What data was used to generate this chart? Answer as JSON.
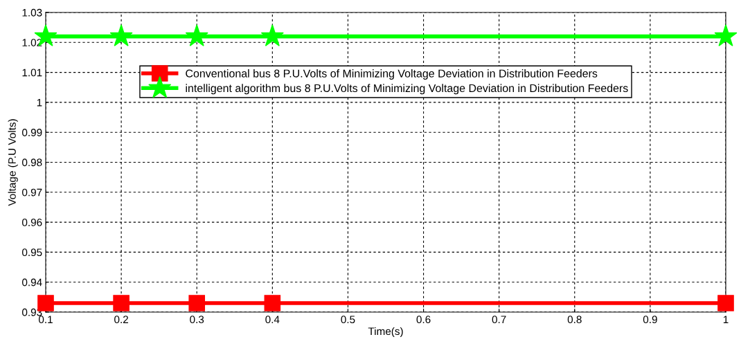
{
  "chart_data": {
    "type": "line",
    "xlabel": "Time(s)",
    "ylabel": "Voltage (P.U Volts)",
    "x": [
      0.1,
      0.2,
      0.3,
      0.4,
      1.0
    ],
    "series": [
      {
        "name": "Conventional bus 8 P.U.Volts of Minimizing Voltage Deviation in Distribution Feeders",
        "color": "#ff0000",
        "marker": "square",
        "values": [
          0.933,
          0.933,
          0.933,
          0.933,
          0.933
        ]
      },
      {
        "name": "intelligent algorithm bus 8 P.U.Volts of Minimizing Voltage Deviation in Distribution Feeders",
        "color": "#00ff00",
        "marker": "star",
        "values": [
          1.022,
          1.022,
          1.022,
          1.022,
          1.022
        ]
      }
    ],
    "xlim": [
      0.1,
      1
    ],
    "xticks": [
      0.1,
      0.2,
      0.3,
      0.4,
      0.5,
      0.6,
      0.7,
      0.8,
      0.9,
      1
    ],
    "ylim": [
      0.93,
      1.03
    ],
    "yticks": [
      0.93,
      0.94,
      0.95,
      0.96,
      0.97,
      0.98,
      0.99,
      1,
      1.01,
      1.02,
      1.03
    ],
    "grid": true,
    "legend": "top",
    "line_style": "solid"
  }
}
